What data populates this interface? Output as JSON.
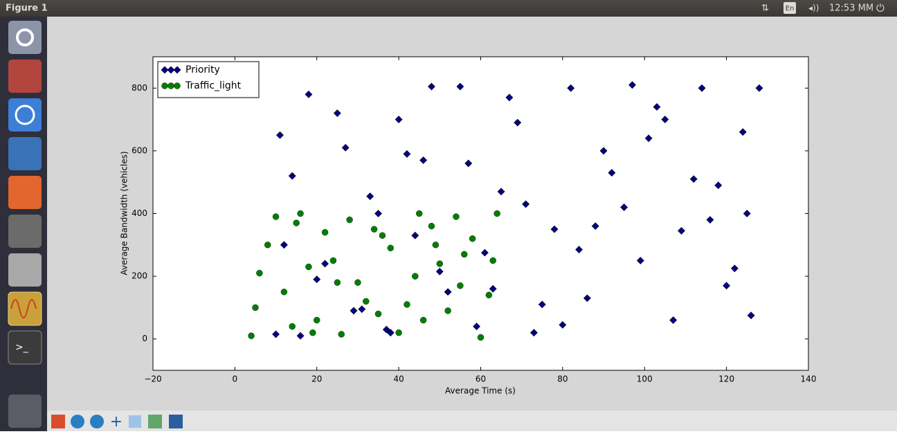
{
  "window": {
    "title": "Figure 1",
    "indicators": {
      "language": "En",
      "clock": "12:53 MM"
    }
  },
  "chart_data": {
    "type": "scatter",
    "xlabel": "Average Time (s)",
    "ylabel": "Average Bandwidth (vehicles)",
    "xlim": [
      -20,
      140
    ],
    "ylim": [
      -100,
      900
    ],
    "xticks": [
      {
        "value": -20,
        "label": "−20"
      },
      0,
      20,
      40,
      60,
      80,
      100,
      120,
      140
    ],
    "yticks": [
      0,
      200,
      400,
      600,
      800
    ],
    "legend": "upper left",
    "series": [
      {
        "name": "Priority",
        "color": "#00008b",
        "marker": "diamond",
        "x": [
          10,
          14,
          18,
          22,
          27,
          31,
          35,
          40,
          44,
          48,
          52,
          57,
          61,
          65,
          69,
          73,
          78,
          82,
          86,
          90,
          95,
          99,
          103,
          107,
          112,
          116,
          120,
          124,
          128,
          12,
          16,
          25,
          33,
          42,
          50,
          59,
          67,
          75,
          84,
          92,
          101,
          109,
          118,
          126,
          20,
          38,
          55,
          71,
          88,
          105,
          122,
          11,
          46,
          80,
          114,
          29,
          63,
          97,
          125,
          37
        ],
        "values": [
          15,
          520,
          780,
          240,
          610,
          95,
          400,
          700,
          330,
          805,
          150,
          560,
          275,
          470,
          690,
          20,
          350,
          800,
          130,
          600,
          420,
          250,
          740,
          60,
          510,
          380,
          170,
          660,
          800,
          300,
          10,
          720,
          455,
          590,
          215,
          40,
          770,
          110,
          285,
          530,
          640,
          345,
          490,
          75,
          190,
          20,
          805,
          430,
          360,
          700,
          225,
          650,
          570,
          45,
          800,
          90,
          160,
          810,
          400,
          30
        ]
      },
      {
        "name": "Traffic_light",
        "color": "#007f00",
        "marker": "circle",
        "x": [
          4,
          8,
          12,
          16,
          20,
          24,
          28,
          32,
          36,
          40,
          44,
          48,
          52,
          56,
          60,
          64,
          6,
          14,
          22,
          30,
          38,
          46,
          54,
          62,
          10,
          18,
          26,
          34,
          42,
          50,
          58,
          5,
          25,
          45,
          63,
          15,
          35,
          55,
          19,
          49
        ],
        "values": [
          10,
          300,
          150,
          400,
          60,
          250,
          380,
          120,
          330,
          20,
          200,
          360,
          90,
          270,
          5,
          400,
          210,
          40,
          340,
          180,
          290,
          60,
          390,
          140,
          390,
          230,
          15,
          350,
          110,
          240,
          320,
          100,
          180,
          400,
          250,
          370,
          80,
          170,
          20,
          300
        ]
      }
    ]
  }
}
